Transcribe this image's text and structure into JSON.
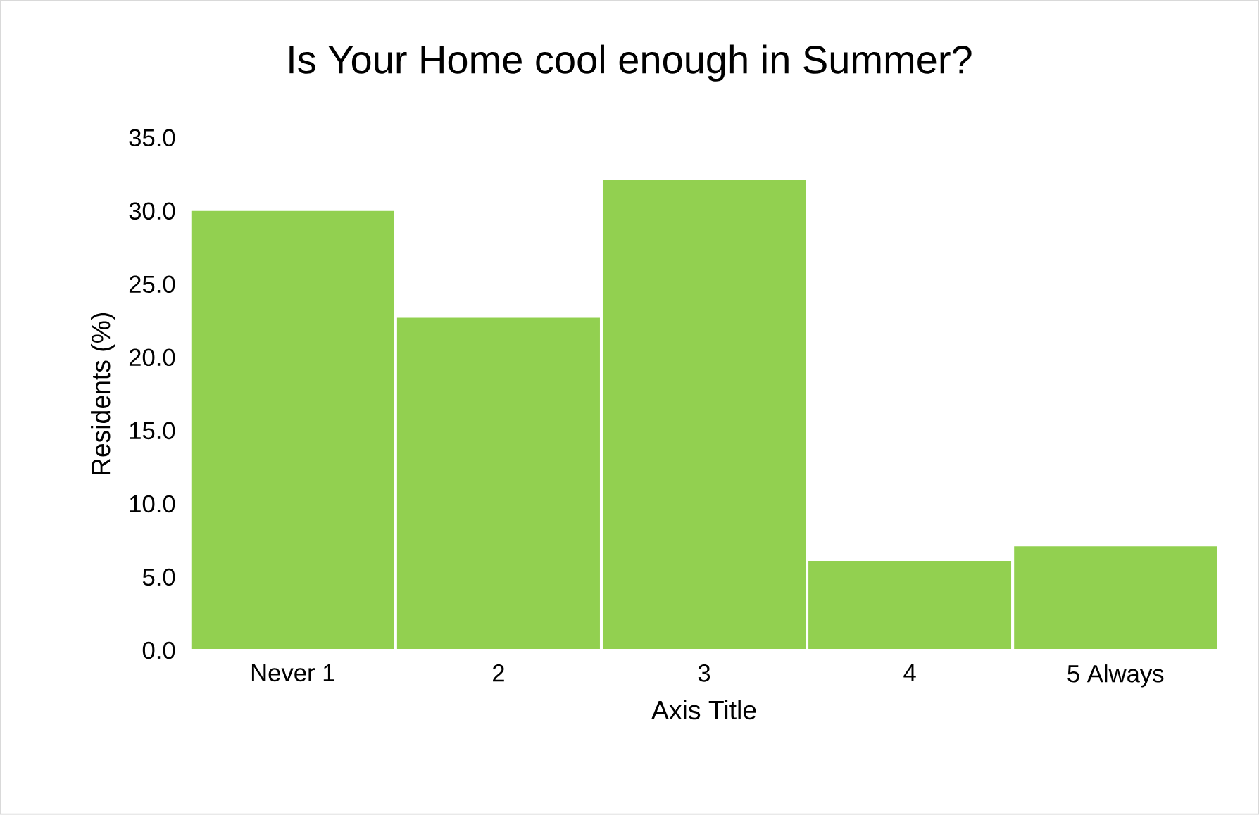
{
  "chart_data": {
    "type": "bar",
    "title": "Is Your Home cool enough in Summer?",
    "xlabel": "Axis Title",
    "ylabel": "Residents (%)",
    "categories": [
      "Never 1",
      "2",
      "3",
      "4",
      "5 Always"
    ],
    "values": [
      30.1,
      22.8,
      32.2,
      6.2,
      7.2
    ],
    "color": "#92d050",
    "ylim": [
      0,
      35
    ],
    "yticks": [
      {
        "value": 0,
        "label": "0.0"
      },
      {
        "value": 5,
        "label": "5.0"
      },
      {
        "value": 10,
        "label": "10.0"
      },
      {
        "value": 15,
        "label": "15.0"
      },
      {
        "value": 20,
        "label": "20.0"
      },
      {
        "value": 25,
        "label": "25.0"
      },
      {
        "value": 30,
        "label": "30.0"
      },
      {
        "value": 35,
        "label": "35.0"
      }
    ]
  }
}
